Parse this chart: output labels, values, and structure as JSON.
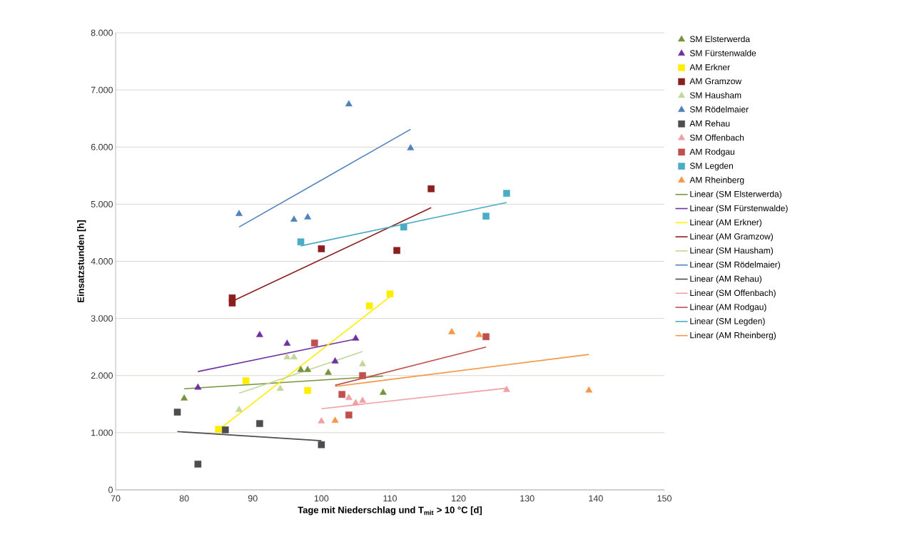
{
  "chart_data": {
    "type": "scatter",
    "xlabel": "Tage mit Niederschlag und T$_{mit}$ > 10 °C [d]",
    "ylabel": "Einsatzstunden [h]",
    "xlim": [
      70,
      150
    ],
    "xticks": [
      70,
      80,
      90,
      100,
      110,
      120,
      130,
      140,
      150
    ],
    "ylim": [
      0,
      8000
    ],
    "yticks": [
      {
        "value": 0,
        "label": "0"
      },
      {
        "value": 1000,
        "label": "1.000"
      },
      {
        "value": 2000,
        "label": "2.000"
      },
      {
        "value": 3000,
        "label": "3.000"
      },
      {
        "value": 4000,
        "label": "4.000"
      },
      {
        "value": 5000,
        "label": "5.000"
      },
      {
        "value": 6000,
        "label": "6.000"
      },
      {
        "value": 7000,
        "label": "7.000"
      },
      {
        "value": 8000,
        "label": "8.000"
      }
    ],
    "grid": "y",
    "legend": "right",
    "series": [
      {
        "name": "SM Elsterwerda",
        "marker": "triangle",
        "color": "#77933c",
        "x": [
          80,
          97,
          98,
          101,
          109
        ],
        "values": [
          1600,
          2100,
          2100,
          2050,
          1700
        ]
      },
      {
        "name": "SM Fürstenwalde",
        "marker": "triangle",
        "color": "#7030a0",
        "x": [
          82,
          91,
          95,
          102,
          105
        ],
        "values": [
          1790,
          2710,
          2560,
          2250,
          2650
        ]
      },
      {
        "name": "AM Erkner",
        "marker": "square",
        "color": "#ffee00",
        "x": [
          85,
          89,
          98,
          107,
          110
        ],
        "values": [
          1060,
          1910,
          1740,
          3220,
          3430
        ]
      },
      {
        "name": "AM Gramzow",
        "marker": "square",
        "color": "#8b1f1f",
        "x": [
          87,
          87,
          100,
          111,
          116
        ],
        "values": [
          3360,
          3270,
          4220,
          4190,
          5270
        ]
      },
      {
        "name": "SM Hausham",
        "marker": "triangle",
        "color": "#c3d69b",
        "x": [
          88,
          94,
          95,
          96,
          106
        ],
        "values": [
          1400,
          1770,
          2320,
          2320,
          2200
        ]
      },
      {
        "name": "SM Rödelmaier",
        "marker": "triangle",
        "color": "#4f81bd",
        "x": [
          88,
          96,
          98,
          104,
          113
        ],
        "values": [
          4830,
          4730,
          4770,
          6750,
          5980
        ]
      },
      {
        "name": "AM Rehau",
        "marker": "square",
        "color": "#4d4d4d",
        "x": [
          79,
          82,
          86,
          91,
          100
        ],
        "values": [
          1360,
          450,
          1050,
          1160,
          790
        ]
      },
      {
        "name": "SM Offenbach",
        "marker": "triangle",
        "color": "#f0a0a4",
        "x": [
          100,
          104,
          105,
          106,
          127
        ],
        "values": [
          1200,
          1610,
          1520,
          1560,
          1750
        ]
      },
      {
        "name": "AM Rodgau",
        "marker": "square",
        "color": "#c0504d",
        "x": [
          99,
          103,
          104,
          106,
          124
        ],
        "values": [
          2570,
          1670,
          1310,
          2000,
          2680
        ]
      },
      {
        "name": "SM Legden",
        "marker": "square",
        "color": "#4bacc6",
        "x": [
          97,
          112,
          124,
          127
        ],
        "values": [
          4340,
          4600,
          4790,
          5190
        ]
      },
      {
        "name": "AM Rheinberg",
        "marker": "triangle",
        "color": "#f79646",
        "x": [
          102,
          119,
          123,
          139
        ],
        "values": [
          1210,
          2760,
          2710,
          1740
        ]
      },
      {
        "name": "Linear (SM Elsterwerda)",
        "type": "line",
        "marker": "none",
        "color": "#77933c",
        "x": [
          80,
          109
        ],
        "values": [
          1770,
          1990
        ]
      },
      {
        "name": "Linear (SM Fürstenwalde)",
        "type": "line",
        "marker": "none",
        "color": "#7030a0",
        "x": [
          82,
          105
        ],
        "values": [
          2070,
          2640
        ]
      },
      {
        "name": "Linear (AM Erkner)",
        "type": "line",
        "marker": "none",
        "color": "#ffee00",
        "x": [
          85,
          110
        ],
        "values": [
          1050,
          3380
        ]
      },
      {
        "name": "Linear (AM Gramzow)",
        "type": "line",
        "marker": "none",
        "color": "#8b1f1f",
        "x": [
          87,
          116
        ],
        "values": [
          3300,
          4940
        ]
      },
      {
        "name": "Linear (SM Hausham)",
        "type": "line",
        "marker": "none",
        "color": "#c3d69b",
        "x": [
          88,
          106
        ],
        "values": [
          1690,
          2420
        ]
      },
      {
        "name": "Linear (SM Rödelmaier)",
        "type": "line",
        "marker": "none",
        "color": "#4f81bd",
        "x": [
          88,
          113
        ],
        "values": [
          4600,
          6310
        ]
      },
      {
        "name": "Linear (AM Rehau)",
        "type": "line",
        "marker": "none",
        "color": "#4d4d4d",
        "x": [
          79,
          100
        ],
        "values": [
          1020,
          860
        ]
      },
      {
        "name": "Linear (SM Offenbach)",
        "type": "line",
        "marker": "none",
        "color": "#f0a0a4",
        "x": [
          100,
          127
        ],
        "values": [
          1420,
          1780
        ]
      },
      {
        "name": "Linear (AM Rodgau)",
        "type": "line",
        "marker": "none",
        "color": "#c0504d",
        "x": [
          102,
          124
        ],
        "values": [
          1830,
          2500
        ]
      },
      {
        "name": "Linear (SM Legden)",
        "type": "line",
        "marker": "none",
        "color": "#4bacc6",
        "x": [
          97,
          127
        ],
        "values": [
          4270,
          5030
        ]
      },
      {
        "name": "Linear (AM Rheinberg)",
        "type": "line",
        "marker": "none",
        "color": "#f79646",
        "x": [
          102,
          139
        ],
        "values": [
          1810,
          2370
        ]
      }
    ]
  }
}
